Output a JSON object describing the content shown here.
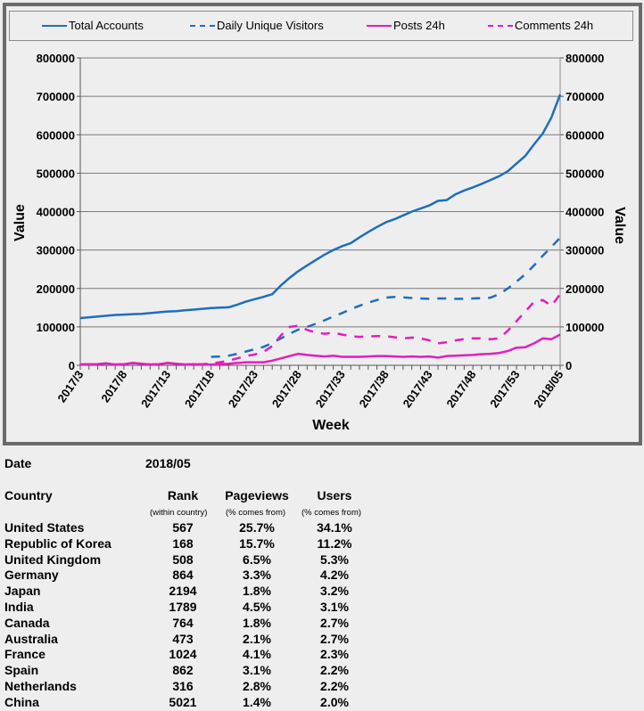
{
  "chart_data": {
    "type": "line",
    "xlabel": "Week",
    "ylabel": "Value",
    "ylabel_right": "Value",
    "ylim": [
      0,
      800000
    ],
    "yticks": [
      "0",
      "100000",
      "200000",
      "300000",
      "400000",
      "500000",
      "600000",
      "700000",
      "800000"
    ],
    "ytick_values": [
      0,
      100000,
      200000,
      300000,
      400000,
      500000,
      600000,
      700000,
      800000
    ],
    "grid": true,
    "legend_position": "top",
    "x": [
      "2017/3",
      "2017/4",
      "2017/5",
      "2017/6",
      "2017/7",
      "2017/8",
      "2017/9",
      "2017/10",
      "2017/11",
      "2017/12",
      "2017/13",
      "2017/14",
      "2017/15",
      "2017/16",
      "2017/17",
      "2017/18",
      "2017/19",
      "2017/20",
      "2017/21",
      "2017/22",
      "2017/23",
      "2017/24",
      "2017/25",
      "2017/26",
      "2017/27",
      "2017/28",
      "2017/29",
      "2017/30",
      "2017/31",
      "2017/32",
      "2017/33",
      "2017/34",
      "2017/35",
      "2017/36",
      "2017/37",
      "2017/38",
      "2017/39",
      "2017/40",
      "2017/41",
      "2017/42",
      "2017/43",
      "2017/44",
      "2017/45",
      "2017/46",
      "2017/47",
      "2017/48",
      "2017/49",
      "2017/50",
      "2017/51",
      "2017/52",
      "2017/53",
      "2018/01",
      "2018/02",
      "2018/03",
      "2018/04",
      "2018/05"
    ],
    "xtick_labels": [
      "2017/3",
      "2017/8",
      "2017/13",
      "2017/18",
      "2017/23",
      "2017/28",
      "2017/33",
      "2017/38",
      "2017/43",
      "2017/48",
      "2017/53",
      "2018/05"
    ],
    "series": [
      {
        "name": "Total Accounts",
        "color": "#1f6dbf",
        "style": "solid",
        "values": [
          123000,
          125000,
          127000,
          129000,
          131000,
          132000,
          133000,
          134000,
          136000,
          138000,
          140000,
          141000,
          143000,
          145000,
          147000,
          149000,
          150000,
          151000,
          158000,
          166000,
          172000,
          178000,
          185000,
          208000,
          228000,
          245000,
          260000,
          274000,
          288000,
          300000,
          310000,
          318000,
          333000,
          347000,
          360000,
          372000,
          380000,
          390000,
          400000,
          408000,
          416000,
          428000,
          430000,
          445000,
          455000,
          463000,
          472000,
          482000,
          492000,
          505000,
          525000,
          545000,
          575000,
          603000,
          645000,
          705000
        ]
      },
      {
        "name": "Daily Unique Visitors",
        "color": "#1f6dbf",
        "style": "dashed",
        "values": [
          null,
          null,
          null,
          null,
          null,
          null,
          null,
          null,
          null,
          null,
          null,
          null,
          null,
          null,
          null,
          22000,
          23000,
          25000,
          30000,
          36000,
          42000,
          48000,
          58000,
          70000,
          82000,
          93000,
          100000,
          108000,
          117000,
          127000,
          136000,
          146000,
          155000,
          163000,
          170000,
          176000,
          178000,
          177000,
          175000,
          174000,
          173000,
          174000,
          174000,
          173000,
          173000,
          174000,
          175000,
          176000,
          185000,
          200000,
          218000,
          237000,
          260000,
          285000,
          308000,
          332000
        ]
      },
      {
        "name": "Posts 24h",
        "color": "#e41dbd",
        "style": "solid",
        "values": [
          2000,
          3000,
          3000,
          5000,
          2000,
          3000,
          6000,
          4000,
          2000,
          3000,
          6000,
          4000,
          2000,
          3000,
          2000,
          2000,
          3000,
          4000,
          6000,
          8000,
          8000,
          8000,
          12000,
          18000,
          24000,
          30000,
          27000,
          25000,
          23000,
          25000,
          22000,
          22000,
          22000,
          23000,
          24000,
          24000,
          23000,
          22000,
          23000,
          22000,
          23000,
          20000,
          24000,
          25000,
          26000,
          27000,
          29000,
          30000,
          32000,
          37000,
          46000,
          47000,
          57000,
          70000,
          68000,
          80000
        ]
      },
      {
        "name": "Comments 24h",
        "color": "#e41dbd",
        "style": "dashed",
        "values": [
          2000,
          3000,
          3000,
          5000,
          2000,
          3000,
          6000,
          4000,
          2000,
          3000,
          6000,
          4000,
          2000,
          3000,
          3000,
          5000,
          8000,
          12000,
          18000,
          24000,
          28000,
          35000,
          50000,
          78000,
          100000,
          103000,
          92000,
          85000,
          82000,
          85000,
          80000,
          76000,
          74000,
          75000,
          76000,
          76000,
          73000,
          70000,
          72000,
          70000,
          65000,
          57000,
          60000,
          65000,
          68000,
          70000,
          70000,
          68000,
          70000,
          90000,
          115000,
          140000,
          165000,
          170000,
          155000,
          185000
        ]
      }
    ]
  },
  "details": {
    "date_label": "Date",
    "date_value": "2018/05",
    "headers": {
      "country": "Country",
      "rank": "Rank",
      "rank_sub": "(within country)",
      "pageviews": "Pageviews",
      "pageviews_sub": "(% comes from)",
      "users": "Users",
      "users_sub": "(% comes from)"
    },
    "rows": [
      {
        "country": "United States",
        "rank": "567",
        "pageviews": "25.7%",
        "users": "34.1%"
      },
      {
        "country": "Republic of Korea",
        "rank": "168",
        "pageviews": "15.7%",
        "users": "11.2%"
      },
      {
        "country": "United Kingdom",
        "rank": "508",
        "pageviews": "6.5%",
        "users": "5.3%"
      },
      {
        "country": "Germany",
        "rank": "864",
        "pageviews": "3.3%",
        "users": "4.2%"
      },
      {
        "country": "Japan",
        "rank": "2194",
        "pageviews": "1.8%",
        "users": "3.2%"
      },
      {
        "country": "India",
        "rank": "1789",
        "pageviews": "4.5%",
        "users": "3.1%"
      },
      {
        "country": "Canada",
        "rank": "764",
        "pageviews": "1.8%",
        "users": "2.7%"
      },
      {
        "country": "Australia",
        "rank": "473",
        "pageviews": "2.1%",
        "users": "2.7%"
      },
      {
        "country": "France",
        "rank": "1024",
        "pageviews": "4.1%",
        "users": "2.3%"
      },
      {
        "country": "Spain",
        "rank": "862",
        "pageviews": "3.1%",
        "users": "2.2%"
      },
      {
        "country": "Netherlands",
        "rank": "316",
        "pageviews": "2.8%",
        "users": "2.2%"
      },
      {
        "country": "China",
        "rank": "5021",
        "pageviews": "1.4%",
        "users": "2.0%"
      }
    ]
  }
}
